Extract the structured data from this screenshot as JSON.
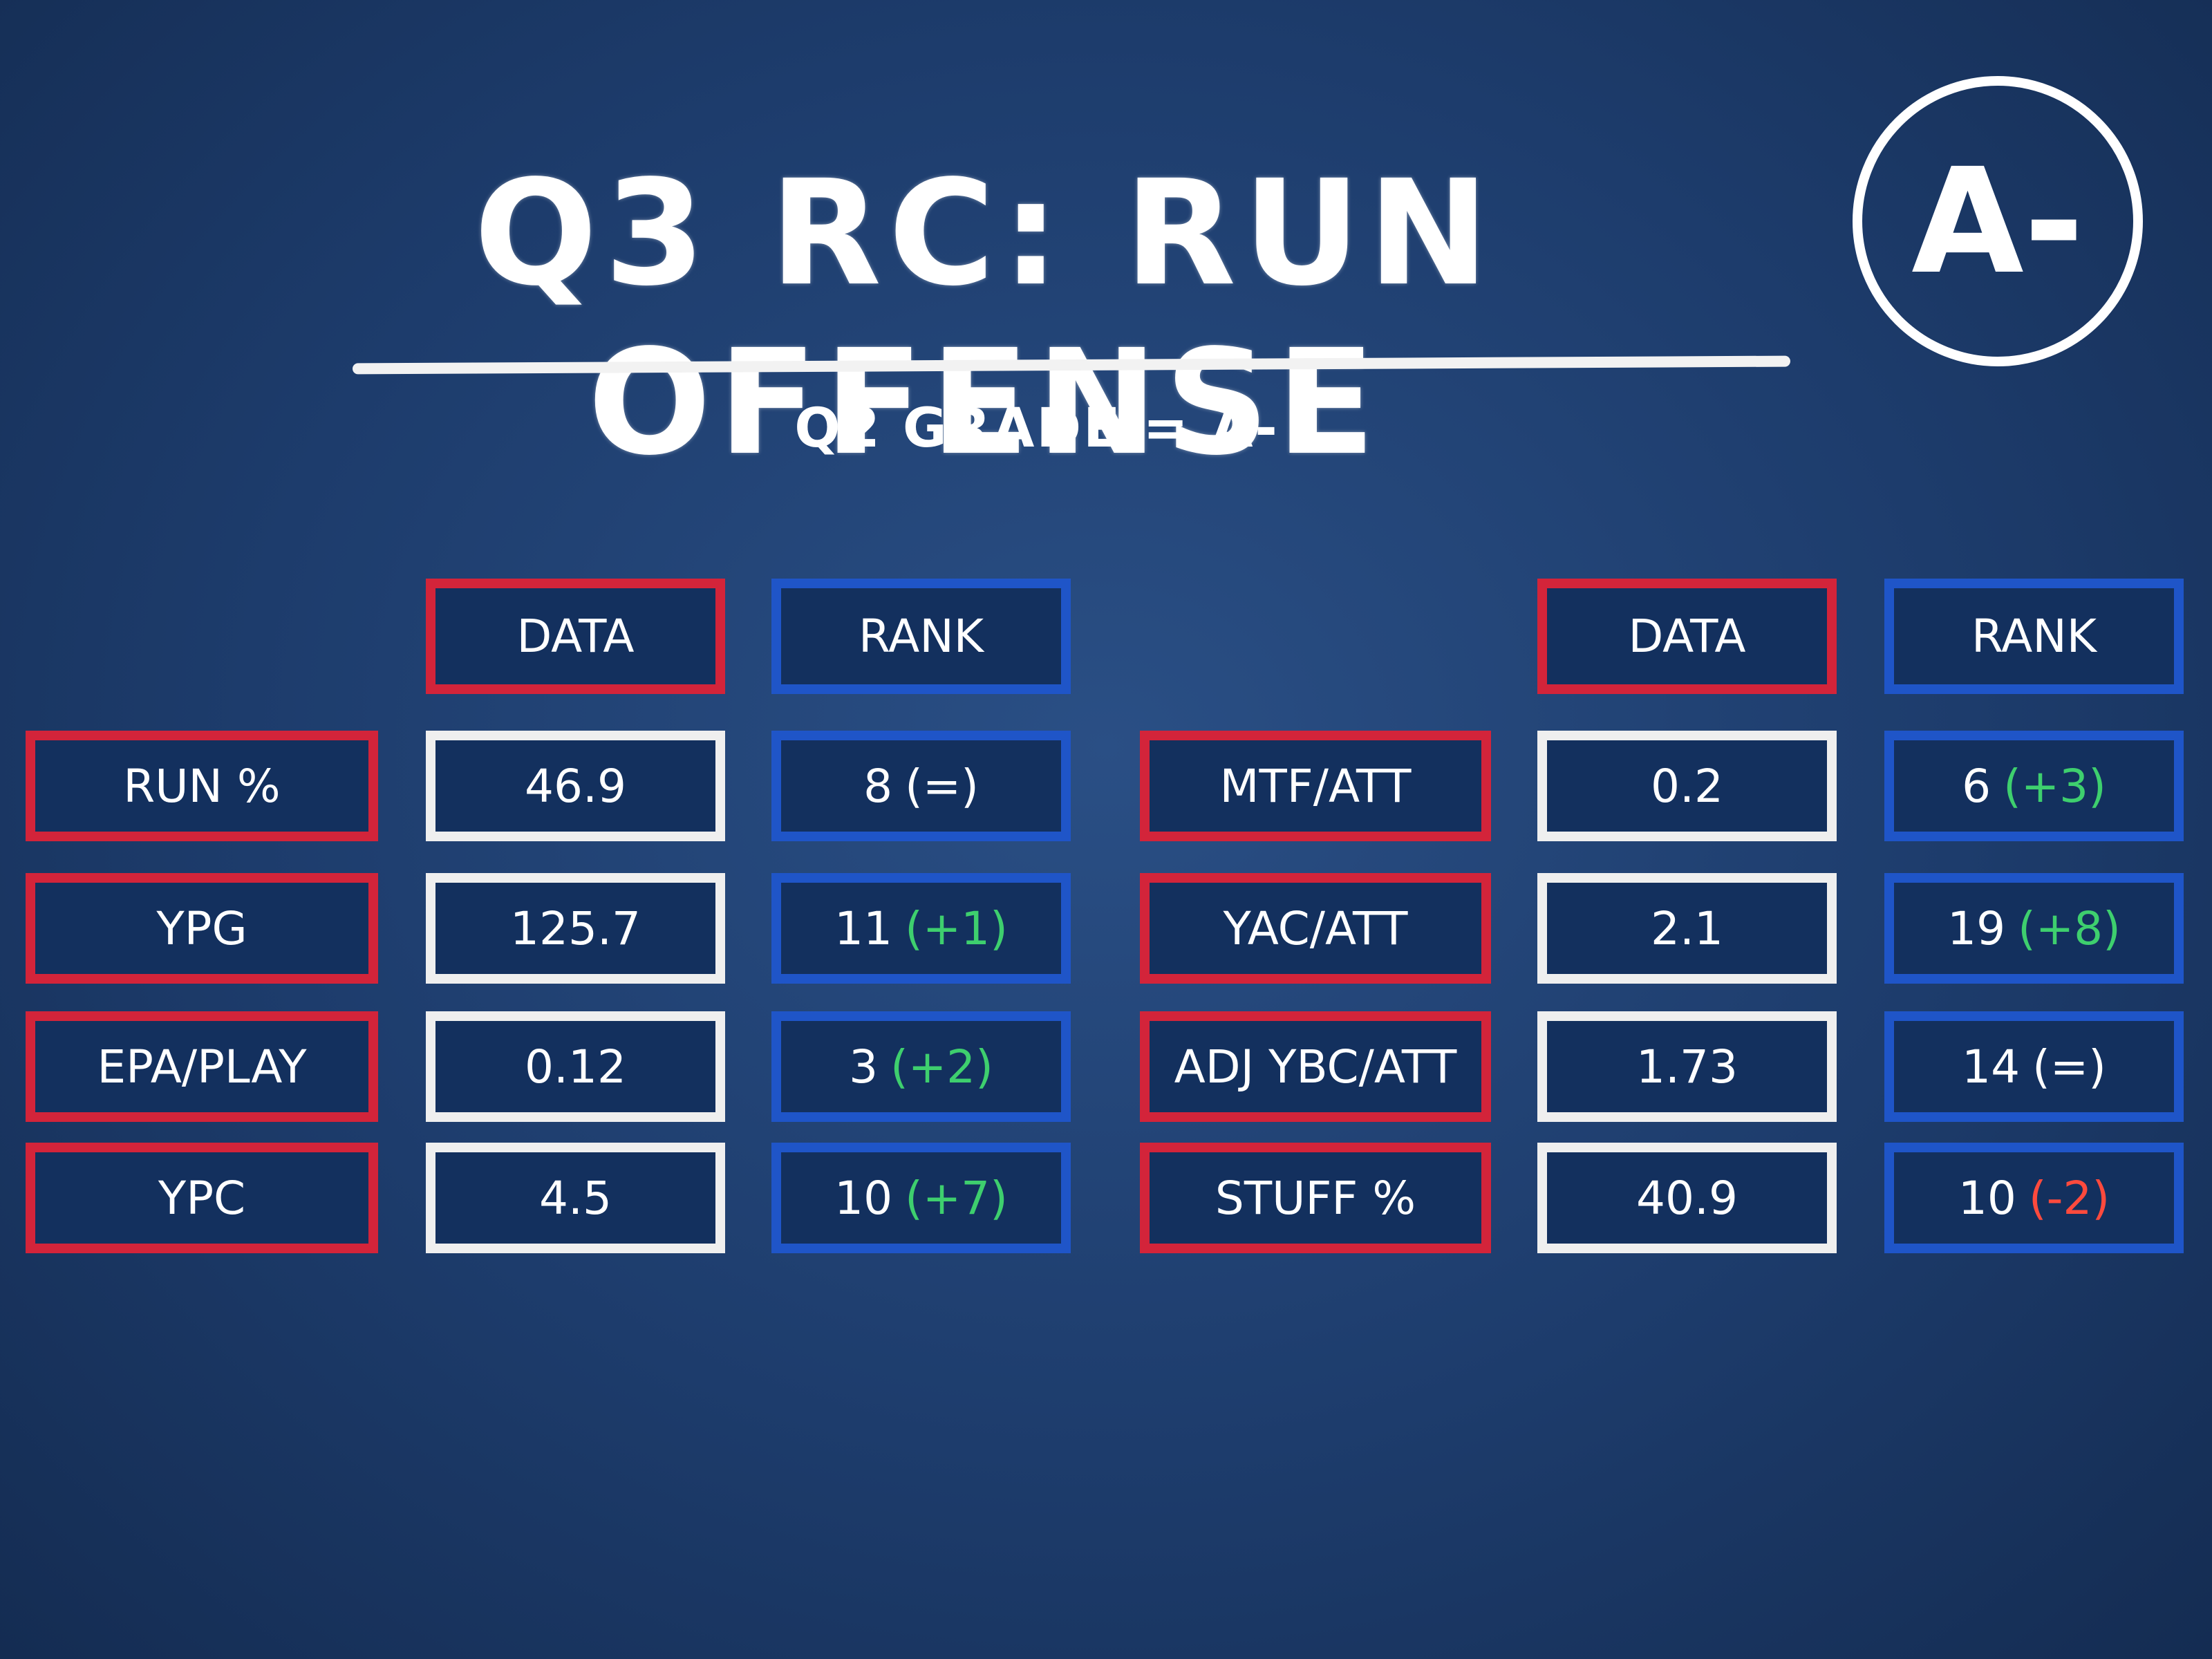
{
  "header": {
    "title": "Q3 RC: RUN OFFENSE",
    "grade": "A-",
    "subtitle": "Q2 GRADE = A-"
  },
  "tables": [
    {
      "columns": [
        "DATA",
        "RANK"
      ],
      "rows": [
        {
          "label": "RUN %",
          "data": 46.9,
          "rank": 8,
          "change": "(=)",
          "change_color": "#ffffff"
        },
        {
          "label": "YPG",
          "data": 125.7,
          "rank": 11,
          "change": "(+1)",
          "change_color": "#3ecf6e"
        },
        {
          "label": "EPA/PLAY",
          "data": 0.12,
          "rank": 3,
          "change": "(+2)",
          "change_color": "#3ecf6e"
        },
        {
          "label": "YPC",
          "data": 4.5,
          "rank": 10,
          "change": "(+7)",
          "change_color": "#3ecf6e"
        }
      ]
    },
    {
      "columns": [
        "DATA",
        "RANK"
      ],
      "rows": [
        {
          "label": "MTF/ATT",
          "data": 0.2,
          "rank": 6,
          "change": "(+3)",
          "change_color": "#3ecf6e"
        },
        {
          "label": "YAC/ATT",
          "data": 2.1,
          "rank": 19,
          "change": "(+8)",
          "change_color": "#3ecf6e"
        },
        {
          "label": "ADJ YBC/ATT",
          "data": 1.73,
          "rank": 14,
          "change": "(=)",
          "change_color": "#ffffff"
        },
        {
          "label": "STUFF %",
          "data": 40.9,
          "rank": 10,
          "change": "(-2)",
          "change_color": "#ff4a3d"
        }
      ]
    }
  ]
}
